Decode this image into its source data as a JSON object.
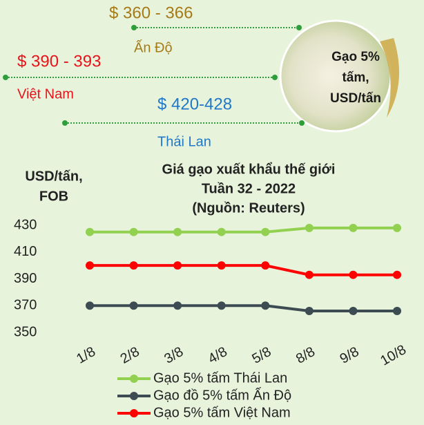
{
  "chart_data": {
    "type": "line",
    "title": [
      "Giá gạo xuất khẩu thế giới",
      "Tuần 32 - 2022",
      "(Nguồn: Reuters)"
    ],
    "y_label": [
      "USD/tấn,",
      "FOB"
    ],
    "badge": [
      "Gạo 5%",
      "tấm,",
      "USD/tấn"
    ],
    "annotations": [
      {
        "price": "$ 360 - 366",
        "label": "Ấn Độ",
        "color": "#a57b17"
      },
      {
        "price": "$ 390 - 393",
        "label": "Việt Nam",
        "color": "#e8141b"
      },
      {
        "price": "$ 420-428",
        "label": "Thái Lan",
        "color": "#1f78c8"
      }
    ],
    "categories": [
      "1/8",
      "2/8",
      "3/8",
      "4/8",
      "5/8",
      "8/8",
      "9/8",
      "10/8"
    ],
    "series": [
      {
        "name": "Gạo 5% tấm Thái Lan",
        "color": "#92d050",
        "values": [
          425,
          425,
          425,
          425,
          425,
          428,
          428,
          428
        ]
      },
      {
        "name": "Gạo đồ 5% tấm Ấn Độ",
        "color": "#3d4b53",
        "values": [
          370,
          370,
          370,
          370,
          370,
          366,
          366,
          366
        ]
      },
      {
        "name": "Gạo 5% tấm Việt Nam",
        "color": "#ff0000",
        "values": [
          400,
          400,
          400,
          400,
          400,
          393,
          393,
          393
        ]
      }
    ],
    "ylim": [
      350,
      430
    ],
    "yticks": [
      350,
      370,
      390,
      410,
      430
    ],
    "grid": false
  }
}
